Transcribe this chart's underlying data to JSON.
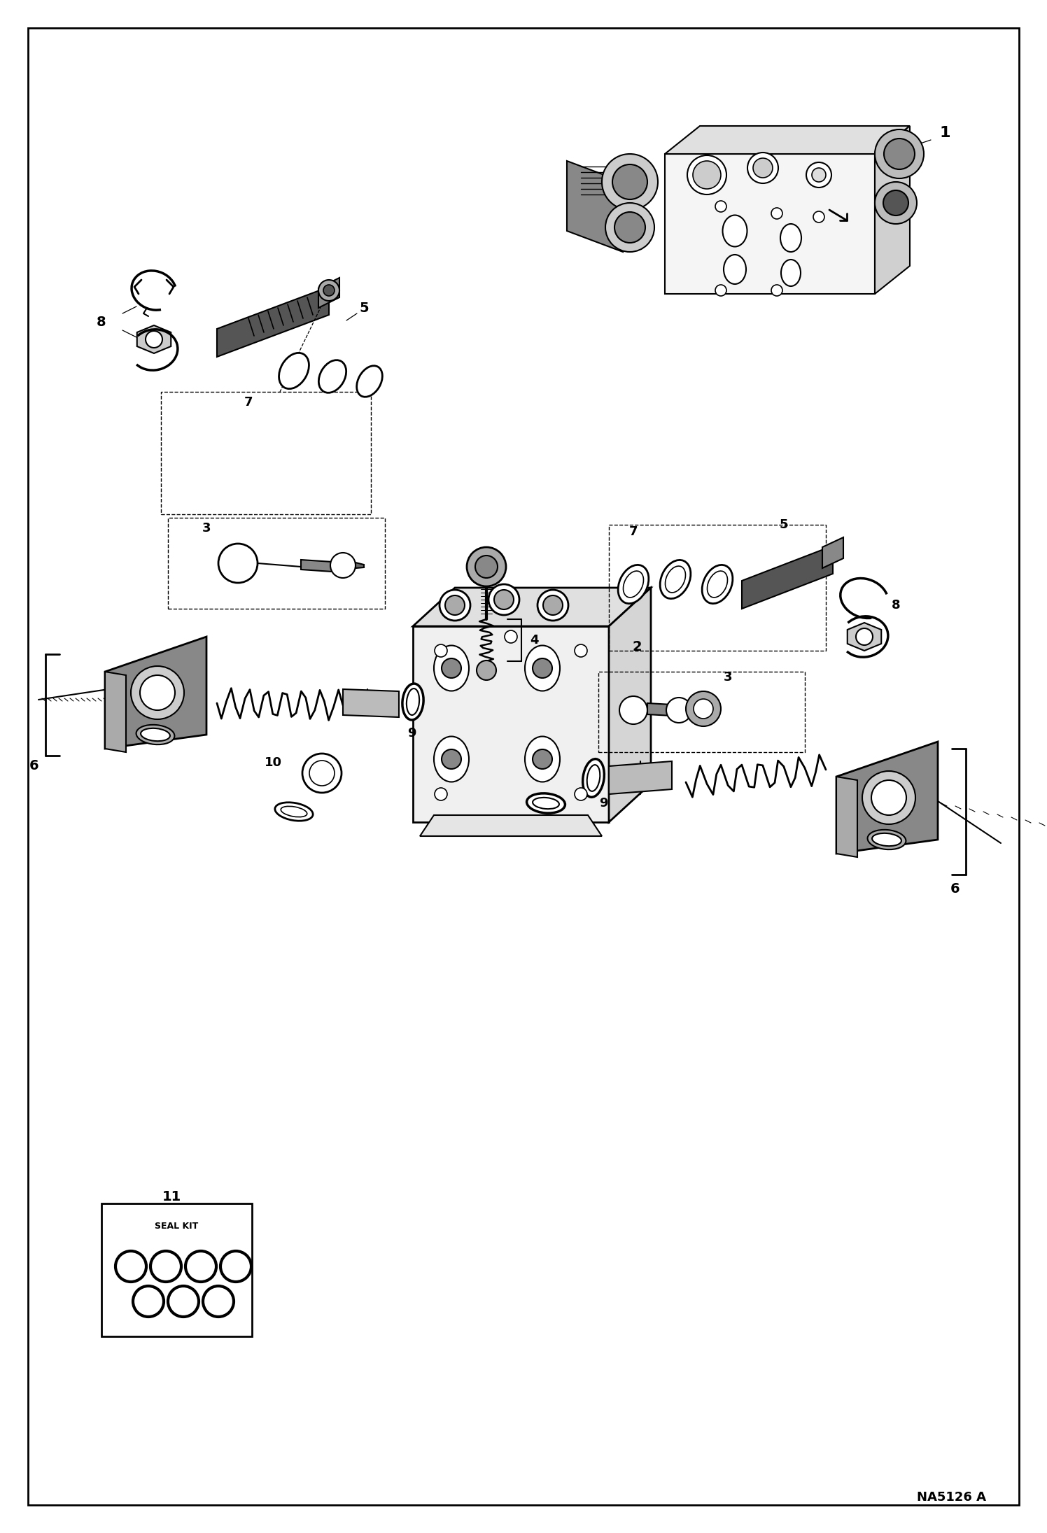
{
  "figure_width": 14.96,
  "figure_height": 21.91,
  "dpi": 100,
  "background_color": "#ffffff",
  "line_color": "#000000",
  "diagram_ref": "NA5126 A",
  "lw_main": 1.8,
  "lw_thin": 0.9,
  "lw_thick": 2.5,
  "label_fontsize": 13,
  "ref_fontsize": 12,
  "seal_label_fontsize": 8
}
